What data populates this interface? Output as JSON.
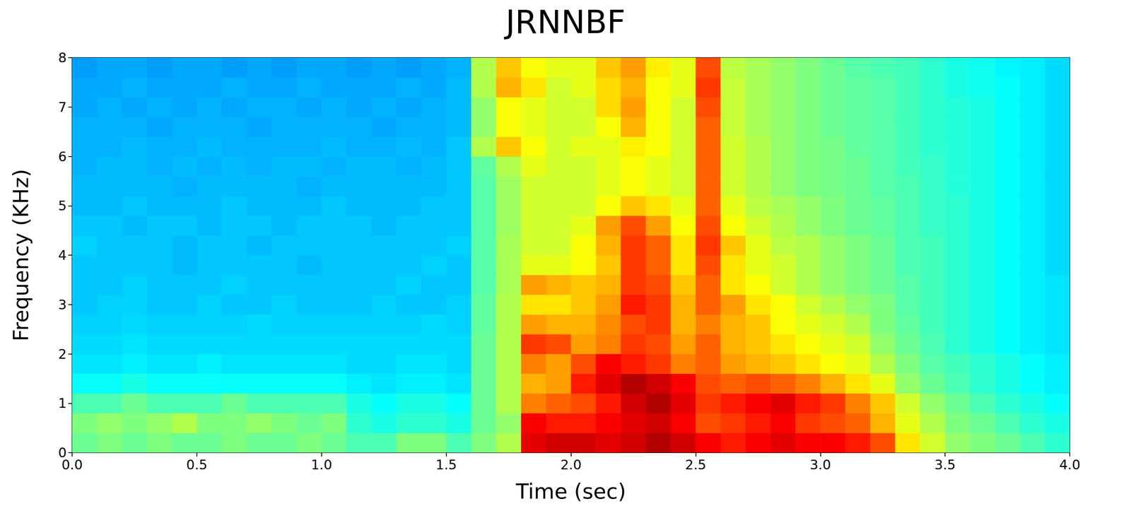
{
  "chart_data": {
    "type": "heatmap",
    "title": "JRNNBF",
    "x_label": "Time (sec)",
    "y_label": "Frequency (KHz)",
    "xlim": [
      0,
      4
    ],
    "ylim": [
      0,
      8
    ],
    "xticks": [
      {
        "value": 0,
        "label": "0.0"
      },
      {
        "value": 0.5,
        "label": "0.5"
      },
      {
        "value": 1,
        "label": "1.0"
      },
      {
        "value": 1.5,
        "label": "1.5"
      },
      {
        "value": 2,
        "label": "2.0"
      },
      {
        "value": 2.5,
        "label": "2.5"
      },
      {
        "value": 3,
        "label": "3.0"
      },
      {
        "value": 3.5,
        "label": "3.5"
      },
      {
        "value": 4,
        "label": "4.0"
      }
    ],
    "yticks": [
      0,
      1,
      2,
      3,
      4,
      5,
      6,
      7,
      8
    ],
    "grid": false,
    "zlim": [
      0,
      100
    ],
    "x_edges": [
      0,
      0.1,
      0.2,
      0.3,
      0.4,
      0.5,
      0.6,
      0.7,
      0.8,
      0.9,
      1,
      1.1,
      1.2,
      1.3,
      1.4,
      1.5,
      1.6,
      1.7,
      1.8,
      1.9,
      2,
      2.1,
      2.2,
      2.3,
      2.4,
      2.5,
      2.6,
      2.7,
      2.8,
      2.9,
      3,
      3.1,
      3.2,
      3.3,
      3.4,
      3.5,
      3.6,
      3.7,
      3.8,
      3.9,
      4
    ],
    "y_edges": [
      0,
      0.4,
      0.8,
      1.2,
      1.6,
      2,
      2.4,
      2.8,
      3.2,
      3.6,
      4,
      4.4,
      4.8,
      5.2,
      5.6,
      6,
      6.4,
      6.8,
      7.2,
      7.6,
      8
    ],
    "cells": [
      [
        48,
        50,
        48,
        50,
        48,
        48,
        50,
        48,
        48,
        50,
        48,
        45,
        45,
        50,
        50,
        45,
        50,
        55,
        90,
        92,
        92,
        90,
        92,
        95,
        92,
        88,
        85,
        88,
        90,
        88,
        88,
        85,
        80,
        65,
        58,
        52,
        50,
        48,
        45,
        42
      ],
      [
        50,
        52,
        50,
        52,
        55,
        50,
        50,
        52,
        50,
        48,
        50,
        42,
        40,
        42,
        42,
        40,
        48,
        52,
        88,
        85,
        85,
        88,
        90,
        92,
        88,
        80,
        82,
        85,
        88,
        82,
        80,
        78,
        70,
        60,
        55,
        50,
        48,
        45,
        42,
        40
      ],
      [
        45,
        45,
        48,
        45,
        45,
        45,
        48,
        45,
        45,
        45,
        45,
        40,
        38,
        40,
        40,
        38,
        48,
        55,
        75,
        78,
        80,
        85,
        92,
        95,
        90,
        82,
        85,
        88,
        90,
        85,
        82,
        75,
        68,
        58,
        52,
        48,
        45,
        42,
        40,
        38
      ],
      [
        38,
        38,
        40,
        38,
        38,
        38,
        38,
        38,
        38,
        38,
        38,
        36,
        35,
        36,
        36,
        35,
        48,
        55,
        70,
        72,
        85,
        90,
        95,
        92,
        88,
        80,
        78,
        80,
        78,
        75,
        70,
        65,
        60,
        52,
        48,
        45,
        42,
        40,
        38,
        36
      ],
      [
        35,
        35,
        36,
        35,
        35,
        36,
        35,
        35,
        35,
        35,
        35,
        34,
        34,
        35,
        35,
        34,
        48,
        55,
        75,
        72,
        80,
        88,
        85,
        82,
        75,
        78,
        72,
        70,
        68,
        65,
        62,
        60,
        55,
        50,
        46,
        44,
        42,
        40,
        38,
        36
      ],
      [
        34,
        34,
        35,
        34,
        34,
        34,
        34,
        34,
        34,
        34,
        34,
        34,
        34,
        34,
        34,
        34,
        48,
        55,
        82,
        80,
        72,
        75,
        82,
        80,
        72,
        78,
        70,
        68,
        65,
        62,
        60,
        58,
        52,
        48,
        45,
        42,
        40,
        38,
        36,
        35
      ],
      [
        33,
        33,
        34,
        33,
        33,
        33,
        33,
        34,
        33,
        33,
        33,
        33,
        33,
        33,
        34,
        33,
        47,
        55,
        72,
        70,
        70,
        74,
        80,
        82,
        70,
        75,
        70,
        68,
        62,
        60,
        58,
        55,
        50,
        47,
        44,
        42,
        40,
        38,
        36,
        35
      ],
      [
        32,
        33,
        33,
        32,
        32,
        33,
        32,
        32,
        33,
        32,
        32,
        32,
        33,
        32,
        32,
        33,
        47,
        55,
        65,
        65,
        68,
        72,
        85,
        82,
        70,
        78,
        72,
        65,
        62,
        58,
        55,
        52,
        50,
        46,
        44,
        42,
        40,
        38,
        36,
        35
      ],
      [
        32,
        32,
        33,
        32,
        32,
        32,
        33,
        32,
        32,
        32,
        32,
        32,
        32,
        33,
        32,
        32,
        46,
        54,
        72,
        70,
        68,
        70,
        82,
        80,
        68,
        78,
        65,
        62,
        58,
        55,
        52,
        50,
        48,
        46,
        44,
        42,
        40,
        38,
        36,
        35
      ],
      [
        32,
        32,
        32,
        32,
        31,
        32,
        32,
        32,
        32,
        31,
        32,
        32,
        32,
        32,
        33,
        32,
        46,
        54,
        60,
        60,
        62,
        68,
        82,
        78,
        65,
        80,
        65,
        60,
        58,
        55,
        52,
        50,
        48,
        45,
        44,
        42,
        40,
        38,
        36,
        34
      ],
      [
        33,
        32,
        32,
        32,
        31,
        32,
        32,
        31,
        32,
        32,
        32,
        32,
        32,
        32,
        32,
        33,
        46,
        54,
        58,
        58,
        62,
        70,
        82,
        78,
        65,
        82,
        68,
        60,
        56,
        55,
        52,
        50,
        48,
        45,
        44,
        42,
        40,
        38,
        36,
        34
      ],
      [
        32,
        32,
        31,
        32,
        32,
        31,
        32,
        32,
        31,
        32,
        32,
        32,
        31,
        32,
        32,
        32,
        46,
        53,
        58,
        58,
        60,
        72,
        80,
        72,
        62,
        80,
        62,
        58,
        55,
        52,
        50,
        48,
        47,
        45,
        43,
        42,
        40,
        38,
        36,
        34
      ],
      [
        31,
        31,
        32,
        31,
        31,
        31,
        32,
        31,
        31,
        31,
        32,
        31,
        31,
        31,
        32,
        32,
        46,
        53,
        58,
        58,
        58,
        62,
        68,
        65,
        60,
        78,
        60,
        56,
        54,
        52,
        50,
        48,
        47,
        45,
        43,
        42,
        40,
        38,
        36,
        34
      ],
      [
        31,
        31,
        31,
        31,
        30,
        31,
        31,
        31,
        31,
        30,
        31,
        31,
        31,
        31,
        31,
        32,
        46,
        53,
        58,
        58,
        58,
        60,
        62,
        60,
        58,
        78,
        58,
        55,
        52,
        50,
        49,
        48,
        46,
        45,
        43,
        41,
        40,
        38,
        36,
        34
      ],
      [
        30,
        31,
        31,
        30,
        31,
        30,
        31,
        30,
        31,
        31,
        30,
        31,
        31,
        30,
        31,
        32,
        47,
        55,
        60,
        58,
        58,
        60,
        62,
        60,
        58,
        78,
        58,
        55,
        52,
        50,
        49,
        48,
        46,
        44,
        43,
        41,
        40,
        38,
        36,
        34
      ],
      [
        30,
        30,
        31,
        30,
        30,
        31,
        30,
        30,
        30,
        30,
        31,
        30,
        30,
        31,
        30,
        32,
        55,
        68,
        62,
        58,
        60,
        60,
        64,
        62,
        58,
        78,
        58,
        55,
        52,
        50,
        49,
        47,
        46,
        44,
        42,
        41,
        40,
        38,
        36,
        34
      ],
      [
        30,
        30,
        30,
        29,
        30,
        30,
        30,
        29,
        30,
        30,
        30,
        30,
        29,
        30,
        30,
        31,
        52,
        62,
        60,
        58,
        58,
        62,
        70,
        62,
        58,
        78,
        57,
        54,
        52,
        50,
        48,
        47,
        46,
        44,
        42,
        41,
        40,
        38,
        36,
        34
      ],
      [
        29,
        30,
        29,
        30,
        29,
        30,
        29,
        30,
        30,
        29,
        30,
        29,
        30,
        29,
        30,
        31,
        52,
        62,
        60,
        58,
        58,
        66,
        72,
        62,
        58,
        80,
        57,
        54,
        52,
        50,
        48,
        47,
        46,
        44,
        42,
        41,
        40,
        38,
        36,
        34
      ],
      [
        29,
        29,
        30,
        29,
        29,
        29,
        30,
        29,
        29,
        30,
        29,
        29,
        29,
        30,
        29,
        31,
        55,
        70,
        65,
        58,
        60,
        66,
        70,
        62,
        60,
        82,
        57,
        54,
        52,
        50,
        48,
        47,
        46,
        44,
        42,
        40,
        39,
        38,
        36,
        34
      ],
      [
        28,
        29,
        29,
        28,
        29,
        29,
        28,
        29,
        28,
        29,
        29,
        28,
        29,
        28,
        29,
        30,
        55,
        68,
        62,
        60,
        60,
        68,
        72,
        64,
        60,
        80,
        56,
        54,
        52,
        50,
        48,
        46,
        45,
        44,
        42,
        40,
        39,
        37,
        36,
        34
      ]
    ]
  }
}
